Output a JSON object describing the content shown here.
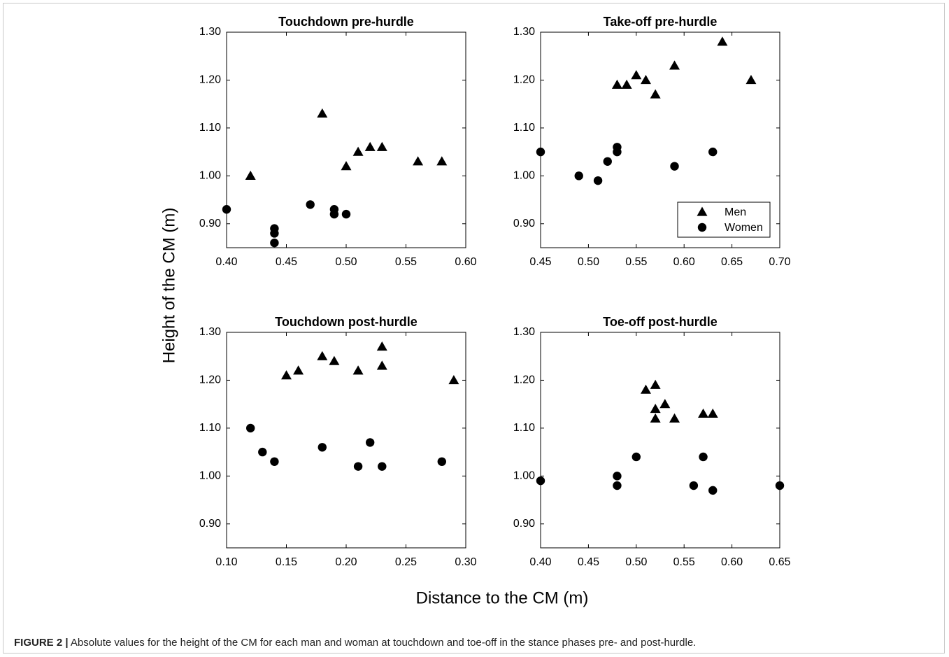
{
  "figure": {
    "label": "FIGURE 2 |",
    "caption": "Absolute values for the height of the CM for each man and woman at touchdown and toe-off in the stance phases pre- and post-hurdle."
  },
  "shared_axes": {
    "ylabel": "Height of the CM (m)",
    "xlabel": "Distance to the CM (m)"
  },
  "legend": {
    "entries": [
      {
        "label": "Men",
        "marker": "triangle"
      },
      {
        "label": "Women",
        "marker": "circle"
      }
    ],
    "placement": "bottom-right of top-right panel"
  },
  "chart_data": [
    {
      "type": "scatter",
      "title": "Touchdown pre-hurdle",
      "xlim": [
        0.4,
        0.6
      ],
      "ylim": [
        0.85,
        1.3
      ],
      "xticks": [
        "0.40",
        "0.45",
        "0.50",
        "0.55",
        "0.60"
      ],
      "yticks": [
        "0.90",
        "1.00",
        "1.10",
        "1.20",
        "1.30"
      ],
      "series": [
        {
          "name": "Men",
          "marker": "triangle",
          "x": [
            0.42,
            0.48,
            0.5,
            0.51,
            0.52,
            0.53,
            0.56,
            0.58
          ],
          "y": [
            1.0,
            1.13,
            1.02,
            1.05,
            1.06,
            1.06,
            1.03,
            1.03
          ]
        },
        {
          "name": "Women",
          "marker": "circle",
          "x": [
            0.4,
            0.44,
            0.44,
            0.44,
            0.47,
            0.49,
            0.49,
            0.5
          ],
          "y": [
            0.93,
            0.89,
            0.88,
            0.86,
            0.94,
            0.93,
            0.92,
            0.92
          ]
        }
      ]
    },
    {
      "type": "scatter",
      "title": "Take-off pre-hurdle",
      "xlim": [
        0.45,
        0.7
      ],
      "ylim": [
        0.85,
        1.3
      ],
      "xticks": [
        "0.45",
        "0.50",
        "0.55",
        "0.60",
        "0.65",
        "0.70"
      ],
      "yticks": [
        "0.90",
        "1.00",
        "1.10",
        "1.20",
        "1.30"
      ],
      "series": [
        {
          "name": "Men",
          "marker": "triangle",
          "x": [
            0.53,
            0.54,
            0.55,
            0.56,
            0.57,
            0.59,
            0.64,
            0.67
          ],
          "y": [
            1.19,
            1.19,
            1.21,
            1.2,
            1.17,
            1.23,
            1.28,
            1.2
          ]
        },
        {
          "name": "Women",
          "marker": "circle",
          "x": [
            0.45,
            0.49,
            0.51,
            0.52,
            0.53,
            0.53,
            0.59,
            0.63
          ],
          "y": [
            1.05,
            1.0,
            0.99,
            1.03,
            1.06,
            1.05,
            1.02,
            1.05
          ]
        }
      ]
    },
    {
      "type": "scatter",
      "title": "Touchdown post-hurdle",
      "xlim": [
        0.1,
        0.3
      ],
      "ylim": [
        0.85,
        1.3
      ],
      "xticks": [
        "0.10",
        "0.15",
        "0.20",
        "0.25",
        "0.30"
      ],
      "yticks": [
        "0.90",
        "1.00",
        "1.10",
        "1.20",
        "1.30"
      ],
      "series": [
        {
          "name": "Men",
          "marker": "triangle",
          "x": [
            0.15,
            0.16,
            0.18,
            0.19,
            0.21,
            0.23,
            0.23,
            0.29
          ],
          "y": [
            1.21,
            1.22,
            1.25,
            1.24,
            1.22,
            1.27,
            1.23,
            1.2
          ]
        },
        {
          "name": "Women",
          "marker": "circle",
          "x": [
            0.12,
            0.13,
            0.14,
            0.18,
            0.21,
            0.22,
            0.23,
            0.28
          ],
          "y": [
            1.1,
            1.05,
            1.03,
            1.06,
            1.02,
            1.07,
            1.02,
            1.03
          ]
        }
      ]
    },
    {
      "type": "scatter",
      "title": "Toe-off post-hurdle",
      "xlim": [
        0.4,
        0.65
      ],
      "ylim": [
        0.85,
        1.3
      ],
      "xticks": [
        "0.40",
        "0.45",
        "0.50",
        "0.55",
        "0.60",
        "0.65"
      ],
      "yticks": [
        "0.90",
        "1.00",
        "1.10",
        "1.20",
        "1.30"
      ],
      "series": [
        {
          "name": "Men",
          "marker": "triangle",
          "x": [
            0.51,
            0.52,
            0.52,
            0.52,
            0.53,
            0.54,
            0.57,
            0.58
          ],
          "y": [
            1.18,
            1.19,
            1.14,
            1.12,
            1.15,
            1.12,
            1.13,
            1.13
          ]
        },
        {
          "name": "Women",
          "marker": "circle",
          "x": [
            0.4,
            0.48,
            0.48,
            0.5,
            0.56,
            0.57,
            0.58,
            0.65
          ],
          "y": [
            0.99,
            1.0,
            0.98,
            1.04,
            0.98,
            1.04,
            0.97,
            0.98
          ]
        }
      ]
    }
  ]
}
